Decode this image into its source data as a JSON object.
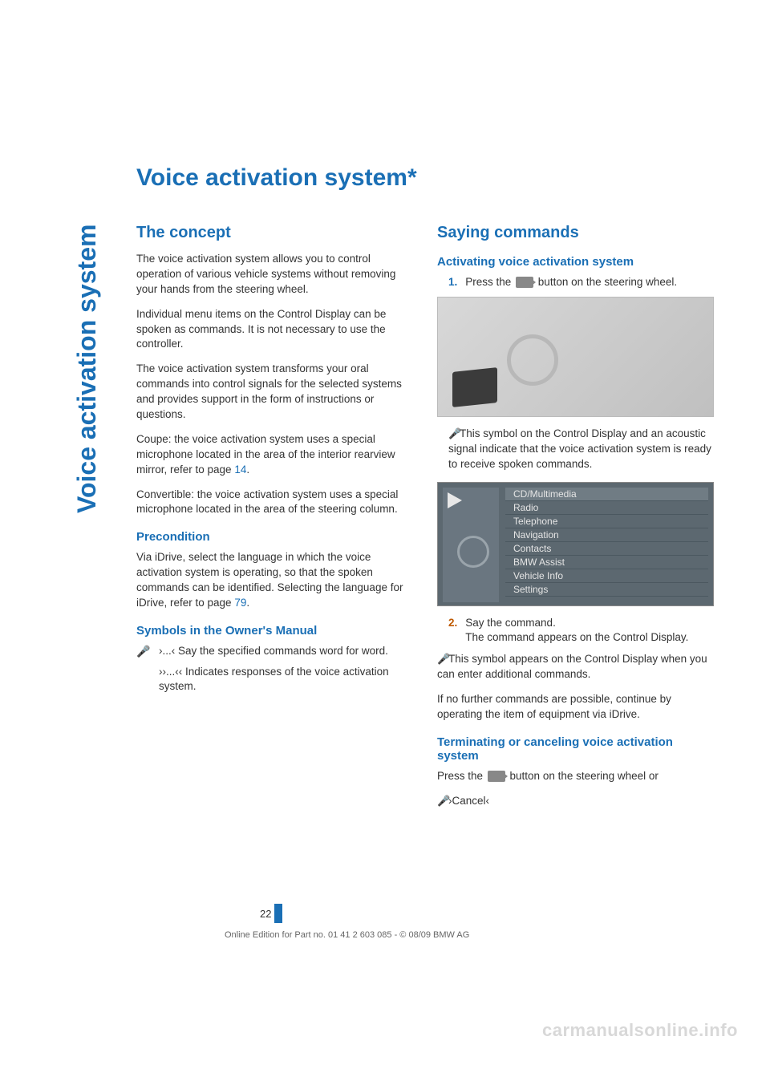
{
  "sidebar": "Voice activation system",
  "title": "Voice activation system",
  "star": "*",
  "left": {
    "concept_h": "The concept",
    "p1": "The voice activation system allows you to control operation of various vehicle systems without removing your hands from the steering wheel.",
    "p2": "Individual menu items on the Control Display can be spoken as commands. It is not necessary to use the controller.",
    "p3": "The voice activation system transforms your oral commands into control signals for the selected systems and provides support in the form of instructions or questions.",
    "p4a": "Coupe: the voice activation system uses a special microphone located in the area of the interior rearview mirror, refer to page ",
    "p4link": "14",
    "p4b": ".",
    "p5": "Convertible: the voice activation system uses a special microphone located in the area of the steering column.",
    "precond_h": "Precondition",
    "p6a": "Via iDrive, select the language in which the voice activation system is operating, so that the spoken commands can be identified. Selecting the language for iDrive, refer to page ",
    "p6link": "79",
    "p6b": ".",
    "symbols_h": "Symbols in the Owner's Manual",
    "sym1_mark": "›...‹",
    "sym1_text": "Say the specified commands word for word.",
    "sym2_mark": "››...‹‹",
    "sym2_text": "Indicates responses of the voice activation system."
  },
  "right": {
    "saying_h": "Saying commands",
    "activating_h": "Activating voice activation system",
    "step1_num": "1.",
    "step1_text": "Press the ",
    "step1_text2": " button on the steering wheel.",
    "indicator_text": "This symbol on the Control Display and an acoustic signal indicate that the voice activation system is ready to receive spoken commands.",
    "menu": [
      "CD/Multimedia",
      "Radio",
      "Telephone",
      "Navigation",
      "Contacts",
      "BMW Assist",
      "Vehicle Info",
      "Settings"
    ],
    "step2_num": "2.",
    "step2a": "Say the command.",
    "step2b": "The command appears on the Control Display.",
    "after_sym": "This symbol appears on the Control Display when you can enter additional commands.",
    "after2": "If no further commands are possible, continue by operating the item of equipment via iDrive.",
    "term_h": "Terminating or canceling voice activation system",
    "term_a": "Press the ",
    "term_b": " button on the steering wheel or",
    "cancel": "›Cancel‹"
  },
  "page_num": "22",
  "footer": "Online Edition for Part no. 01 41 2 603 085 - © 08/09 BMW AG",
  "watermark": "carmanualsonline.info",
  "colors": {
    "accent": "#1a6fb5",
    "orange": "#bf5a00",
    "text": "#333333",
    "gray": "#999999"
  }
}
